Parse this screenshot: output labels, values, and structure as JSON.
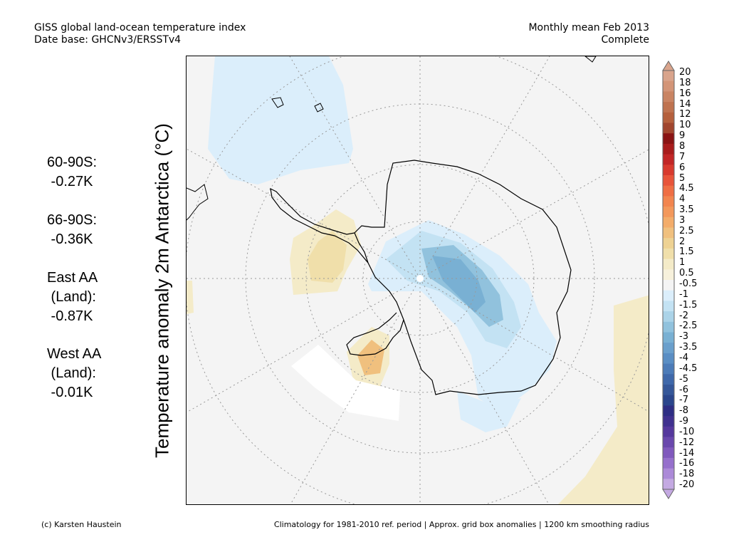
{
  "header": {
    "title_line1": "GISS global land-ocean temperature index",
    "title_line2": "Date base: GHCNv3/ERSSTv4",
    "period_line1": "Monthly mean Feb 2013",
    "period_line2": "Complete"
  },
  "axis_label": "Temperature anomaly 2m Antarctica (°C)",
  "stats": [
    {
      "lines": [
        "60-90S:",
        " -0.27K"
      ]
    },
    {
      "lines": [
        "66-90S:",
        " -0.36K"
      ]
    },
    {
      "lines": [
        "East AA",
        " (Land):",
        " -0.87K"
      ]
    },
    {
      "lines": [
        "West AA",
        " (Land):",
        " -0.01K"
      ]
    }
  ],
  "colorbar": {
    "labels": [
      "20",
      "18",
      "16",
      "14",
      "12",
      "10",
      "9",
      "8",
      "7",
      "6",
      "5",
      "4.5",
      "4",
      "3.5",
      "3",
      "2.5",
      "2",
      "1.5",
      "1",
      "0.5",
      "-0.5",
      "-1",
      "-1.5",
      "-2",
      "-2.5",
      "-3",
      "-3.5",
      "-4",
      "-4.5",
      "-5",
      "-6",
      "-7",
      "-8",
      "-9",
      "-10",
      "-12",
      "-14",
      "-16",
      "-18",
      "-20"
    ],
    "colors": [
      "#d9a48c",
      "#d39578",
      "#c98463",
      "#bf7350",
      "#b5603d",
      "#a1462e",
      "#8a1414",
      "#a81c1c",
      "#c22626",
      "#d83a2e",
      "#e8543a",
      "#ef6e44",
      "#f2854f",
      "#f3985b",
      "#f3ac6a",
      "#f0c07e",
      "#eed293",
      "#f0dfaa",
      "#f4ebc8",
      "#f7f1dc",
      "#f4f4f4",
      "#dbeefb",
      "#c3e2f3",
      "#abd3e8",
      "#91c2dd",
      "#79b0d3",
      "#6a9fcc",
      "#5a8ec4",
      "#4c7bb8",
      "#3f68aa",
      "#355799",
      "#2b468c",
      "#2e2e84",
      "#40318f",
      "#55389d",
      "#6a48ad",
      "#8059bd",
      "#9670cc",
      "#ac8ad8",
      "#c4a9e2"
    ]
  },
  "footer": {
    "left": "(c) Karsten Haustein",
    "right": "Climatology for 1981-2010 ref. period | Approx. grid box anomalies | 1200 km smoothing radius"
  },
  "map": {
    "background_color": "#f4f4f4",
    "projection": "south-polar-stereographic"
  }
}
